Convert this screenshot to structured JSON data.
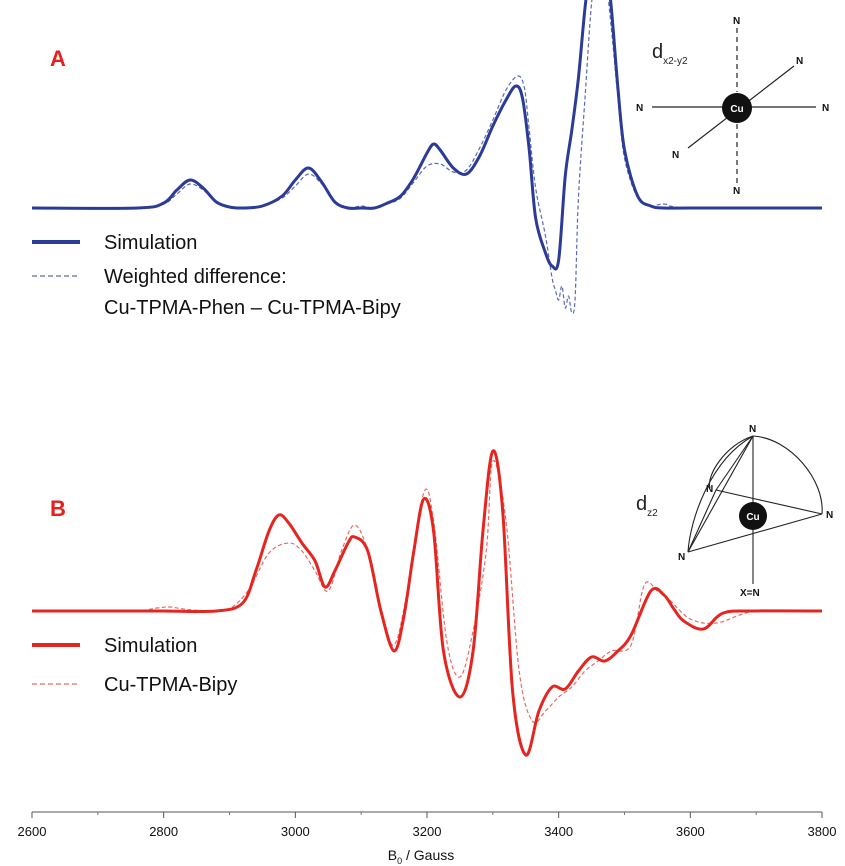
{
  "chart_data": [
    {
      "type": "line",
      "panel": "A",
      "xlabel_main": "B",
      "xlabel_sub": "0",
      "xlabel_suffix": " / Gauss",
      "xlim": [
        2600,
        3800
      ],
      "xticks": [
        "2600",
        "2800",
        "3000",
        "3200",
        "3400",
        "3600",
        "3800"
      ],
      "baseline_y": 208,
      "orbital": {
        "main": "d",
        "sub": "x2-y2"
      },
      "center_atom": "Cu",
      "ligand_label": "N",
      "legend": [
        {
          "label": "Simulation",
          "style": "solid"
        },
        {
          "label": "Weighted difference:",
          "style": "dashed"
        },
        {
          "label": "Cu-TPMA-Phen – Cu-TPMA-Bipy",
          "style": "none"
        }
      ],
      "series": [
        {
          "style": "solid",
          "x": [
            2600,
            2760,
            2800,
            2820,
            2840,
            2860,
            2880,
            2900,
            2920,
            2950,
            2980,
            3000,
            3020,
            3040,
            3060,
            3080,
            3100,
            3120,
            3140,
            3160,
            3180,
            3200,
            3210,
            3220,
            3240,
            3260,
            3280,
            3300,
            3320,
            3335,
            3345,
            3355,
            3365,
            3380,
            3390,
            3400,
            3410,
            3420,
            3430,
            3440,
            3450,
            3460,
            3470,
            3480,
            3490,
            3500,
            3520,
            3540,
            3560,
            3600,
            3800
          ],
          "y": [
            0,
            0,
            -5,
            -18,
            -28,
            -20,
            -6,
            -1,
            0,
            -2,
            -12,
            -28,
            -40,
            -26,
            -6,
            0,
            0,
            0,
            -5,
            -12,
            -30,
            -55,
            -64,
            -58,
            -40,
            -34,
            -52,
            -82,
            -108,
            -122,
            -110,
            -60,
            10,
            45,
            58,
            52,
            -32,
            -78,
            -130,
            -200,
            -252,
            -276,
            -258,
            -200,
            -120,
            -58,
            -12,
            -2,
            0,
            0,
            0
          ]
        },
        {
          "style": "dashed",
          "x": [
            2600,
            2760,
            2800,
            2820,
            2840,
            2860,
            2880,
            2900,
            2920,
            2950,
            2980,
            3000,
            3020,
            3040,
            3060,
            3080,
            3100,
            3120,
            3140,
            3160,
            3180,
            3200,
            3220,
            3240,
            3260,
            3280,
            3300,
            3320,
            3338,
            3348,
            3355,
            3365,
            3380,
            3390,
            3395,
            3400,
            3405,
            3410,
            3415,
            3420,
            3425,
            3430,
            3440,
            3450,
            3460,
            3470,
            3480,
            3490,
            3500,
            3520,
            3540,
            3560,
            3600,
            3800
          ],
          "y": [
            0,
            0,
            -4,
            -14,
            -24,
            -18,
            -6,
            -1,
            0,
            -2,
            -10,
            -22,
            -34,
            -24,
            -6,
            0,
            -2,
            0,
            -4,
            -10,
            -26,
            -42,
            -44,
            -36,
            -38,
            -60,
            -88,
            -118,
            -132,
            -120,
            -80,
            -20,
            28,
            70,
            82,
            92,
            78,
            100,
            88,
            105,
            90,
            -10,
            -110,
            -205,
            -248,
            -236,
            -180,
            -110,
            -50,
            -10,
            -2,
            -4,
            0,
            0
          ]
        }
      ]
    },
    {
      "type": "line",
      "panel": "B",
      "xlim": [
        2600,
        3800
      ],
      "baseline_y": 611,
      "orbital": {
        "main": "d",
        "sub": "z2"
      },
      "center_atom": "Cu",
      "ligand_label": "N",
      "axial_label": "X=N",
      "legend": [
        {
          "label": "Simulation",
          "style": "solid"
        },
        {
          "label": "Cu-TPMA-Bipy",
          "style": "dashed"
        }
      ],
      "series": [
        {
          "style": "solid",
          "x": [
            2600,
            2750,
            2800,
            2880,
            2920,
            2940,
            2960,
            2975,
            2990,
            3010,
            3030,
            3045,
            3060,
            3080,
            3090,
            3110,
            3130,
            3150,
            3165,
            3180,
            3195,
            3210,
            3225,
            3250,
            3270,
            3285,
            3300,
            3315,
            3330,
            3350,
            3370,
            3390,
            3410,
            3430,
            3450,
            3470,
            3490,
            3510,
            3540,
            3560,
            3575,
            3590,
            3620,
            3650,
            3700,
            3800
          ],
          "y": [
            0,
            0,
            0,
            0,
            -8,
            -40,
            -80,
            -96,
            -88,
            -68,
            -50,
            -24,
            -40,
            -68,
            -74,
            -60,
            0,
            40,
            5,
            -60,
            -112,
            -80,
            40,
            86,
            40,
            -80,
            -160,
            -100,
            80,
            144,
            100,
            76,
            78,
            60,
            46,
            50,
            40,
            24,
            -20,
            -16,
            -2,
            10,
            18,
            2,
            0,
            0
          ]
        },
        {
          "style": "dashed",
          "x": [
            2600,
            2750,
            2790,
            2810,
            2830,
            2870,
            2900,
            2930,
            2960,
            2990,
            3010,
            3030,
            3050,
            3070,
            3090,
            3110,
            3130,
            3150,
            3170,
            3195,
            3210,
            3230,
            3250,
            3270,
            3290,
            3300,
            3320,
            3340,
            3360,
            3380,
            3400,
            3420,
            3440,
            3460,
            3480,
            3510,
            3530,
            3550,
            3570,
            3600,
            3640,
            3700,
            3800
          ],
          "y": [
            0,
            0,
            -3,
            -4,
            -2,
            0,
            -2,
            -22,
            -58,
            -68,
            -60,
            -40,
            -20,
            -60,
            -86,
            -60,
            0,
            34,
            -20,
            -118,
            -90,
            30,
            66,
            20,
            -60,
            -150,
            -90,
            60,
            110,
            100,
            86,
            76,
            60,
            50,
            40,
            34,
            -26,
            -20,
            -10,
            8,
            12,
            0,
            0
          ]
        }
      ]
    }
  ]
}
